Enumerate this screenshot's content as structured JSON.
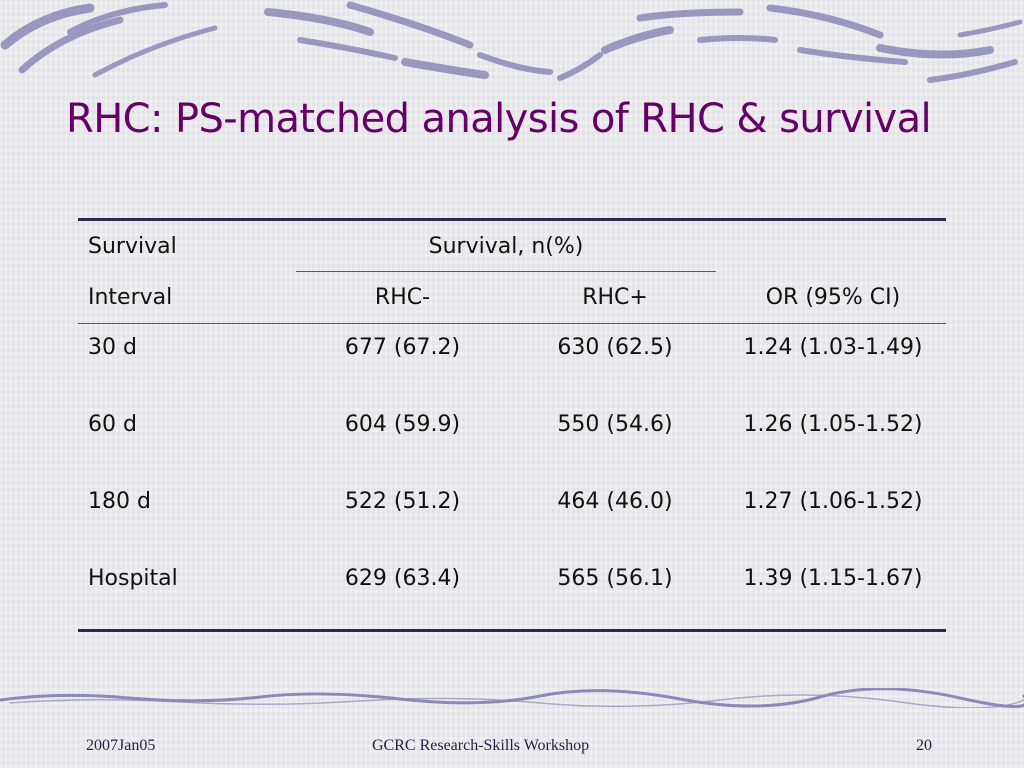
{
  "slide": {
    "title": "RHC: PS-matched analysis of RHC & survival"
  },
  "table": {
    "header_row1": {
      "col1": "Survival",
      "group": "Survival, n(%)"
    },
    "header_row2": {
      "col1": "Interval",
      "col2": "RHC-",
      "col3": "RHC+",
      "col4": "OR (95% CI)"
    },
    "rows": [
      {
        "interval": "30 d",
        "rhc_neg": "677 (67.2)",
        "rhc_pos": "630 (62.5)",
        "or": "1.24 (1.03-1.49)"
      },
      {
        "interval": "60 d",
        "rhc_neg": "604 (59.9)",
        "rhc_pos": "550 (54.6)",
        "or": "1.26 (1.05-1.52)"
      },
      {
        "interval": "180 d",
        "rhc_neg": "522 (51.2)",
        "rhc_pos": "464 (46.0)",
        "or": "1.27 (1.06-1.52)"
      },
      {
        "interval": "Hospital",
        "rhc_neg": "629 (63.4)",
        "rhc_pos": "565 (56.1)",
        "or": "1.39 (1.15-1.67)"
      }
    ]
  },
  "footer": {
    "date": "2007Jan05",
    "center": "GCRC Research-Skills Workshop",
    "page": "20"
  },
  "colors": {
    "title": "#660066",
    "deco_stroke": "#8a8ab8",
    "background": "#ececf0"
  },
  "icons": {
    "top_decoration": "brush-stroke-border",
    "bottom_decoration": "wavy-line-border"
  }
}
